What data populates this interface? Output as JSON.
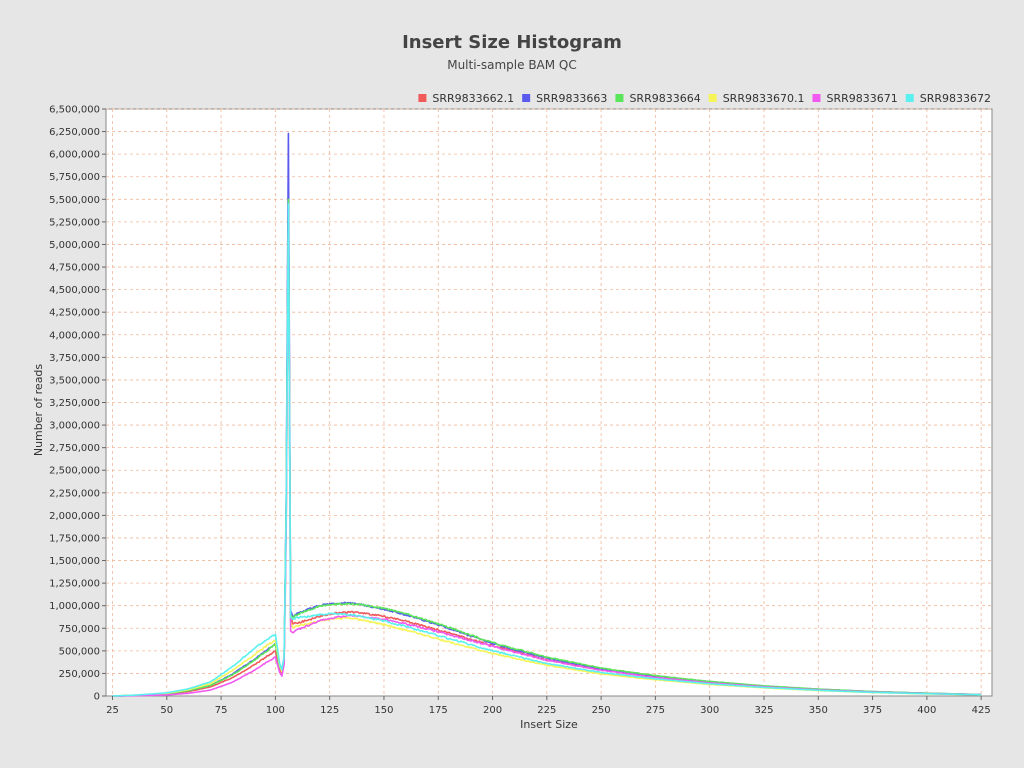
{
  "chart_data": {
    "type": "line",
    "title": "Insert Size Histogram",
    "subtitle": "Multi-sample BAM QC",
    "xlabel": "Insert Size",
    "ylabel": "Number of reads",
    "xlim": [
      22,
      430
    ],
    "ylim": [
      0,
      6500000
    ],
    "x_ticks": [
      25,
      50,
      75,
      100,
      125,
      150,
      175,
      200,
      225,
      250,
      275,
      300,
      325,
      350,
      375,
      400,
      425
    ],
    "x_tick_labels": [
      "25",
      "50",
      "75",
      "100",
      "125",
      "150",
      "175",
      "200",
      "225",
      "250",
      "275",
      "300",
      "325",
      "350",
      "375",
      "400",
      "425"
    ],
    "y_ticks": [
      0,
      250000,
      500000,
      750000,
      1000000,
      1250000,
      1500000,
      1750000,
      2000000,
      2250000,
      2500000,
      2750000,
      3000000,
      3250000,
      3500000,
      3750000,
      4000000,
      4250000,
      4500000,
      4750000,
      5000000,
      5250000,
      5500000,
      5750000,
      6000000,
      6250000,
      6500000
    ],
    "y_tick_labels": [
      "0",
      "250,000",
      "500,000",
      "750,000",
      "1,000,000",
      "1,250,000",
      "1,500,000",
      "1,750,000",
      "2,000,000",
      "2,250,000",
      "2,500,000",
      "2,750,000",
      "3,000,000",
      "3,250,000",
      "3,500,000",
      "3,750,000",
      "4,000,000",
      "4,250,000",
      "4,500,000",
      "4,750,000",
      "5,000,000",
      "5,250,000",
      "5,500,000",
      "5,750,000",
      "6,000,000",
      "6,250,000",
      "6,500,000"
    ],
    "grid": true,
    "legend_position": "top-right",
    "series": [
      {
        "name": "SRR9833662.1",
        "color": "#f05a5a",
        "x": [
          25,
          35,
          50,
          60,
          70,
          80,
          90,
          95,
          100,
          102,
          103,
          104,
          105,
          106,
          107,
          108,
          110,
          115,
          120,
          125,
          130,
          135,
          140,
          150,
          160,
          175,
          200,
          225,
          250,
          275,
          300,
          325,
          350,
          375,
          400,
          425
        ],
        "y": [
          0,
          5000,
          20000,
          50000,
          100000,
          200000,
          340000,
          420000,
          500000,
          300000,
          240000,
          380000,
          2000000,
          5600000,
          900000,
          800000,
          810000,
          840000,
          880000,
          910000,
          920000,
          930000,
          920000,
          880000,
          830000,
          730000,
          560000,
          400000,
          290000,
          210000,
          150000,
          105000,
          70000,
          45000,
          28000,
          15000
        ]
      },
      {
        "name": "SRR9833663",
        "color": "#5a5aee",
        "x": [
          25,
          35,
          50,
          60,
          70,
          80,
          90,
          95,
          100,
          102,
          103,
          104,
          105,
          106,
          107,
          108,
          110,
          115,
          120,
          125,
          130,
          135,
          140,
          150,
          160,
          175,
          200,
          225,
          250,
          275,
          300,
          325,
          350,
          375,
          400,
          425
        ],
        "y": [
          0,
          6000,
          25000,
          60000,
          115000,
          240000,
          400000,
          490000,
          580000,
          320000,
          300000,
          420000,
          2200000,
          6230000,
          950000,
          880000,
          910000,
          960000,
          1000000,
          1020000,
          1030000,
          1030000,
          1010000,
          960000,
          900000,
          790000,
          580000,
          420000,
          300000,
          220000,
          160000,
          110000,
          75000,
          48000,
          30000,
          16000
        ]
      },
      {
        "name": "SRR9833664",
        "color": "#5ae65a",
        "x": [
          25,
          35,
          50,
          60,
          70,
          80,
          90,
          95,
          100,
          102,
          103,
          104,
          105,
          106,
          107,
          108,
          110,
          115,
          120,
          125,
          130,
          135,
          140,
          150,
          160,
          175,
          200,
          225,
          250,
          275,
          300,
          325,
          350,
          375,
          400,
          425
        ],
        "y": [
          0,
          6000,
          25000,
          60000,
          115000,
          230000,
          390000,
          480000,
          570000,
          320000,
          290000,
          410000,
          2100000,
          5500000,
          900000,
          870000,
          900000,
          950000,
          990000,
          1010000,
          1020000,
          1020000,
          1010000,
          970000,
          910000,
          800000,
          590000,
          430000,
          310000,
          225000,
          160000,
          112000,
          76000,
          49000,
          31000,
          17000
        ]
      },
      {
        "name": "SRR9833670.1",
        "color": "#f5f55a",
        "x": [
          25,
          35,
          50,
          60,
          70,
          80,
          90,
          95,
          100,
          102,
          103,
          104,
          105,
          106,
          107,
          108,
          110,
          115,
          120,
          125,
          130,
          135,
          140,
          150,
          160,
          175,
          200,
          225,
          250,
          275,
          300,
          325,
          350,
          375,
          400,
          425
        ],
        "y": [
          0,
          8000,
          30000,
          70000,
          135000,
          280000,
          450000,
          540000,
          620000,
          340000,
          270000,
          400000,
          1900000,
          5300000,
          820000,
          760000,
          780000,
          800000,
          830000,
          850000,
          860000,
          860000,
          840000,
          790000,
          730000,
          630000,
          470000,
          340000,
          245000,
          180000,
          128000,
          90000,
          60000,
          38000,
          24000,
          13000
        ]
      },
      {
        "name": "SRR9833671",
        "color": "#f05af0",
        "x": [
          25,
          35,
          50,
          60,
          70,
          80,
          90,
          95,
          100,
          102,
          103,
          104,
          105,
          106,
          107,
          108,
          110,
          115,
          120,
          125,
          130,
          135,
          140,
          150,
          160,
          175,
          200,
          225,
          250,
          275,
          300,
          325,
          350,
          375,
          400,
          425
        ],
        "y": [
          0,
          3000,
          12000,
          30000,
          65000,
          150000,
          280000,
          360000,
          430000,
          260000,
          220000,
          350000,
          1800000,
          5400000,
          720000,
          700000,
          730000,
          780000,
          830000,
          860000,
          880000,
          890000,
          880000,
          850000,
          800000,
          710000,
          550000,
          395000,
          285000,
          205000,
          145000,
          102000,
          68000,
          44000,
          27000,
          15000
        ]
      },
      {
        "name": "SRR9833672",
        "color": "#5af0f0",
        "x": [
          25,
          35,
          50,
          60,
          70,
          80,
          90,
          95,
          100,
          102,
          103,
          104,
          105,
          106,
          107,
          108,
          110,
          115,
          120,
          125,
          130,
          135,
          140,
          150,
          160,
          175,
          200,
          225,
          250,
          275,
          300,
          325,
          350,
          375,
          400,
          425
        ],
        "y": [
          0,
          9000,
          35000,
          80000,
          155000,
          320000,
          520000,
          610000,
          680000,
          360000,
          290000,
          430000,
          2000000,
          5450000,
          870000,
          850000,
          870000,
          880000,
          900000,
          910000,
          910000,
          900000,
          880000,
          830000,
          770000,
          670000,
          500000,
          360000,
          260000,
          190000,
          135000,
          95000,
          63000,
          40000,
          25000,
          14000
        ]
      }
    ]
  }
}
